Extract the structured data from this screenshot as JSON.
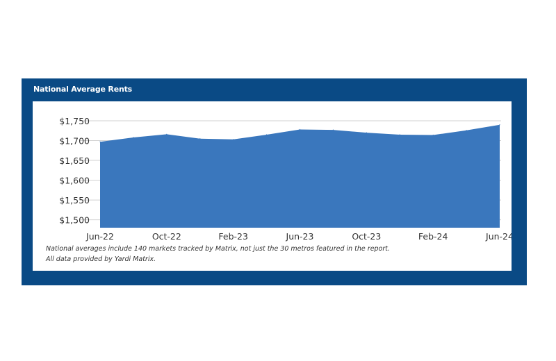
{
  "panel": {
    "title": "National Average Rents",
    "background_color": "#0a4a85"
  },
  "chart_data": {
    "type": "area",
    "title": "National Average Rents",
    "xlabel": "",
    "ylabel": "",
    "x": [
      "Jun-22",
      "Aug-22",
      "Oct-22",
      "Dec-22",
      "Feb-23",
      "Apr-23",
      "Jun-23",
      "Aug-23",
      "Oct-23",
      "Dec-23",
      "Feb-24",
      "Apr-24",
      "Jun-24"
    ],
    "values": [
      1697,
      1708,
      1716,
      1705,
      1703,
      1715,
      1728,
      1727,
      1720,
      1715,
      1714,
      1726,
      1740
    ],
    "x_tick_labels": [
      "Jun-22",
      "Oct-22",
      "Feb-23",
      "Jun-23",
      "Oct-23",
      "Feb-24",
      "Jun-24"
    ],
    "y_tick_values": [
      1500,
      1550,
      1600,
      1650,
      1700,
      1750
    ],
    "y_tick_labels": [
      "$1,500",
      "$1,550",
      "$1,600",
      "$1,650",
      "$1,700",
      "$1,750"
    ],
    "ylim": [
      1480,
      1750
    ],
    "grid": true,
    "fill_color": "#3a77bd",
    "grid_color": "#d0d0d0"
  },
  "notes": [
    "National averages include 140 markets tracked by Matrix, not just the 30 metros featured in the report.",
    "All data provided by Yardi Matrix."
  ]
}
